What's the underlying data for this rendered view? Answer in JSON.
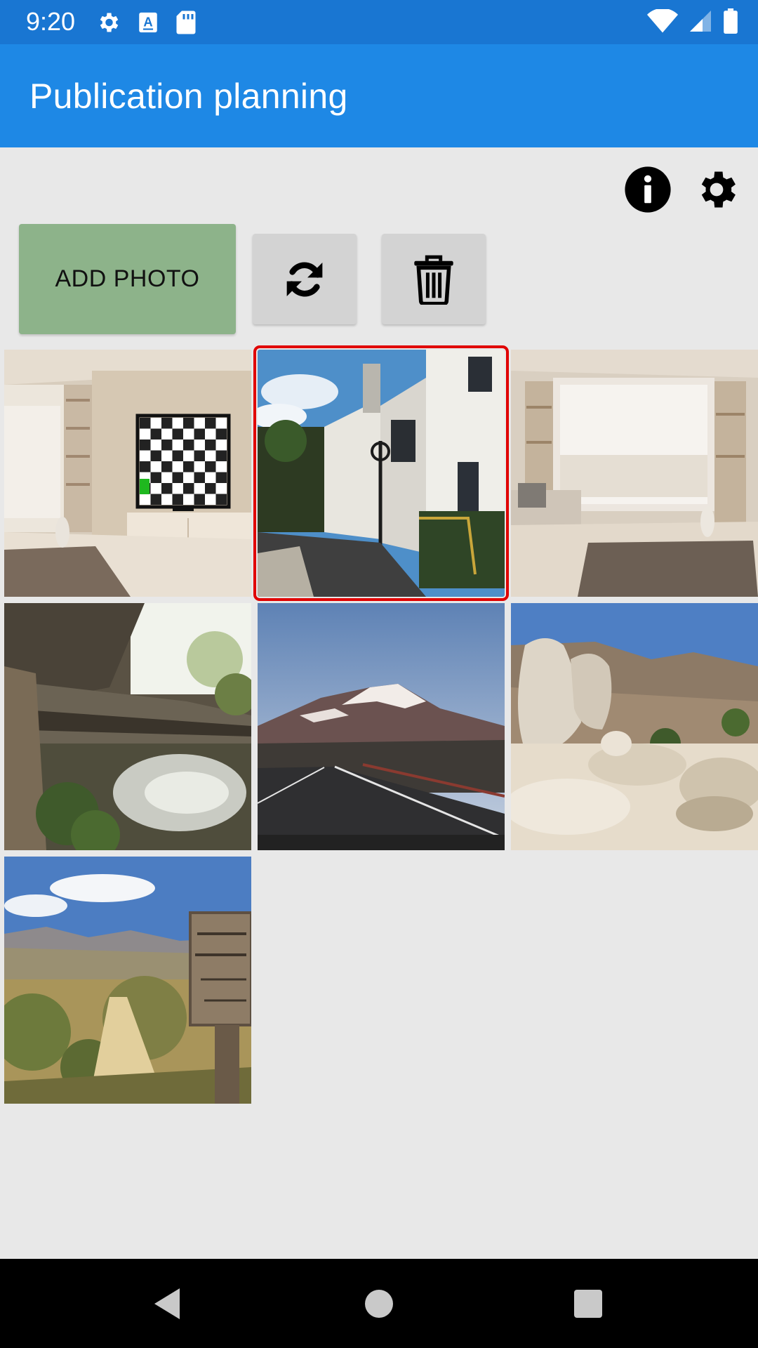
{
  "status_bar": {
    "time": "9:20",
    "left_icons": [
      "gear-icon",
      "text-a-icon",
      "sd-card-icon"
    ],
    "right_icons": [
      "wifi-icon",
      "signal-icon",
      "battery-icon"
    ]
  },
  "app_bar": {
    "title": "Publication planning"
  },
  "actions": {
    "info_icon": "info-icon",
    "settings_icon": "gear-icon"
  },
  "toolbar": {
    "add_photo_label": "ADD PHOTO",
    "refresh_icon": "refresh-icon",
    "delete_icon": "trash-icon",
    "add_photo_color": "#8db38a"
  },
  "photos": [
    {
      "subject": "living room with checkerboard TV",
      "selected": false
    },
    {
      "subject": "old white building alley",
      "selected": true
    },
    {
      "subject": "living room with window and sofa",
      "selected": false
    },
    {
      "subject": "cave with river",
      "selected": false
    },
    {
      "subject": "mountain road at dusk",
      "selected": false
    },
    {
      "subject": "desert boulders",
      "selected": false
    },
    {
      "subject": "wilderness trail sign",
      "selected": false
    }
  ],
  "colors": {
    "status_bar": "#1976d2",
    "app_bar": "#1e88e5",
    "selection": "#e00000",
    "background": "#e8e8e8"
  },
  "nav_bar": {
    "icons": [
      "back-icon",
      "home-icon",
      "recents-icon"
    ]
  }
}
